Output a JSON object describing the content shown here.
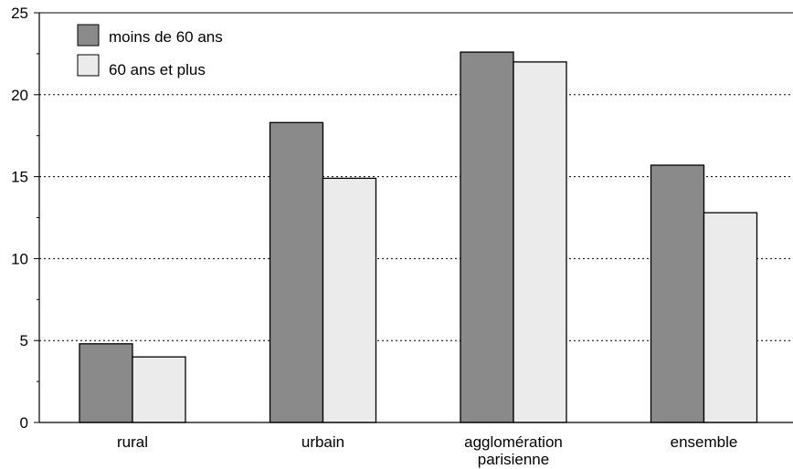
{
  "chart_data": {
    "type": "bar",
    "categories": [
      [
        "rural"
      ],
      [
        "urbain"
      ],
      [
        "agglomération",
        "parisienne"
      ],
      [
        "ensemble"
      ]
    ],
    "series": [
      {
        "name": "moins de 60 ans",
        "values": [
          4.8,
          18.3,
          22.6,
          15.7
        ],
        "color": "#8a8a8a"
      },
      {
        "name": "60 ans et plus",
        "values": [
          4.0,
          14.9,
          22.0,
          12.8
        ],
        "color": "#ebebeb"
      }
    ],
    "ylim": [
      0,
      25
    ],
    "yticks": [
      0,
      5,
      10,
      15,
      20,
      25
    ],
    "grid": "dotted horizontal",
    "legend_position": "top-left"
  }
}
